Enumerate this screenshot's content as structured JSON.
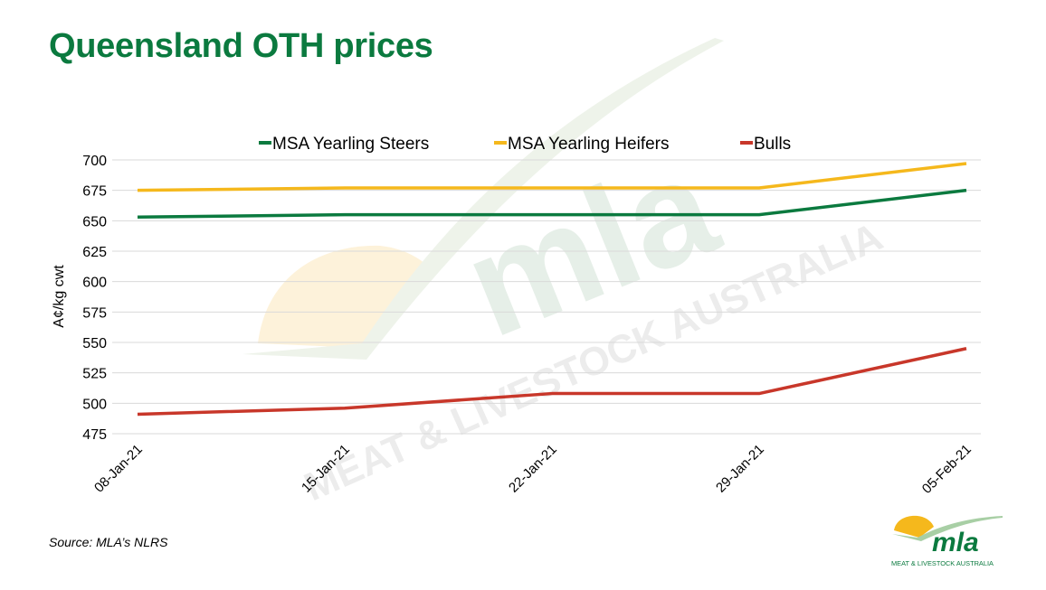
{
  "title": "Queensland OTH prices",
  "source": "Source: MLA’s NLRS",
  "watermark": {
    "mark_text": "mla",
    "sub_text": "MEAT & LIVESTOCK AUSTRALIA"
  },
  "logo": {
    "mark_text": "mla",
    "sub_text": "MEAT & LIVESTOCK AUSTRALIA"
  },
  "colors": {
    "title": "#0b7a3f",
    "grid": "#d9d9d9"
  },
  "chart_data": {
    "type": "line",
    "title": "",
    "xlabel": "",
    "ylabel": "A¢/kg cwt",
    "categories": [
      "08-Jan-21",
      "15-Jan-21",
      "22-Jan-21",
      "29-Jan-21",
      "05-Feb-21"
    ],
    "ylim": [
      475,
      700
    ],
    "yticks": [
      475,
      500,
      525,
      550,
      575,
      600,
      625,
      650,
      675,
      700
    ],
    "grid": true,
    "legend_position": "top",
    "series": [
      {
        "name": "MSA Yearling Steers",
        "color": "#0b7a3f",
        "values": [
          653,
          655,
          655,
          655,
          675
        ]
      },
      {
        "name": "MSA Yearling Heifers",
        "color": "#f5b81c",
        "values": [
          675,
          677,
          677,
          677,
          697
        ]
      },
      {
        "name": "Bulls",
        "color": "#c8372a",
        "values": [
          491,
          496,
          508,
          508,
          545
        ]
      }
    ]
  }
}
